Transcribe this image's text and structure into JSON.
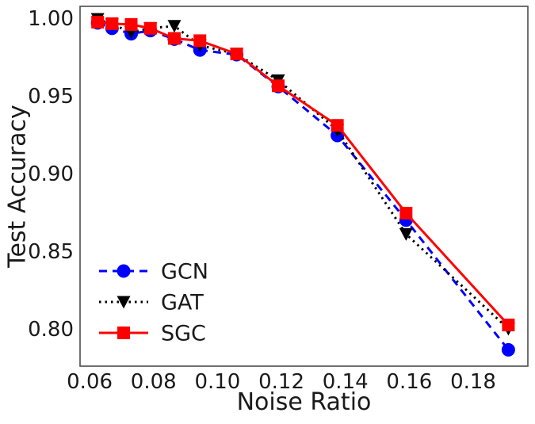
{
  "chart_data": {
    "type": "line",
    "title": "",
    "xlabel": "Noise Ratio",
    "ylabel": "Test Accuracy",
    "x": [
      0.0625,
      0.067,
      0.073,
      0.079,
      0.0865,
      0.0945,
      0.106,
      0.119,
      0.1375,
      0.159,
      0.191
    ],
    "series": [
      {
        "name": "GCN",
        "color": "#0000ff",
        "line": "dashed",
        "marker": "circle",
        "values": [
          0.997,
          0.9935,
          0.99,
          0.992,
          0.9865,
          0.9795,
          0.9765,
          0.956,
          0.9245,
          0.87,
          0.7865
        ]
      },
      {
        "name": "GAT",
        "color": "#000000",
        "line": "dotted",
        "marker": "triangle-down",
        "values": [
          0.9995,
          0.996,
          0.991,
          0.9935,
          0.995,
          0.9825,
          0.977,
          0.96,
          0.928,
          0.861,
          0.8
        ]
      },
      {
        "name": "SGC",
        "color": "#ff0000",
        "line": "solid",
        "marker": "square",
        "values": [
          0.9975,
          0.9965,
          0.996,
          0.9935,
          0.987,
          0.9855,
          0.977,
          0.9565,
          0.931,
          0.8745,
          0.8025
        ]
      }
    ],
    "xticks": {
      "values": [
        0.06,
        0.08,
        0.1,
        0.12,
        0.14,
        0.16,
        0.18
      ],
      "labels": [
        "0.06",
        "0.08",
        "0.10",
        "0.12",
        "0.14",
        "0.16",
        "0.18"
      ]
    },
    "yticks": {
      "values": [
        0.8,
        0.85,
        0.9,
        0.95,
        1.0
      ],
      "labels": [
        "0.80",
        "0.85",
        "0.90",
        "0.95",
        "1.00"
      ]
    },
    "xlim": [
      0.057,
      0.1971
    ],
    "ylim": [
      0.776,
      1.00765
    ],
    "grid": false,
    "legend_position": "lower-left",
    "text_color": "#1a1a1a",
    "spine_color": "#4d4d4d"
  }
}
